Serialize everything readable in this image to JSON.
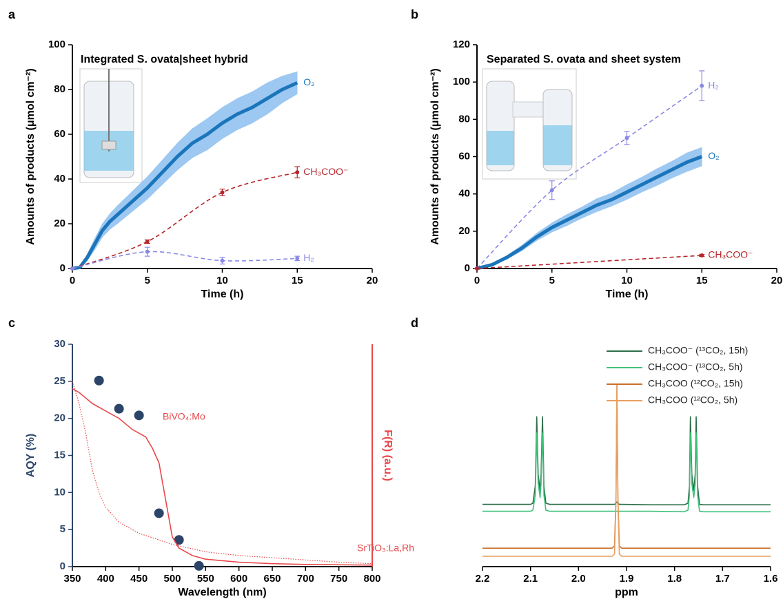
{
  "chart_data": [
    {
      "type": "line",
      "panel": "a",
      "title": "Integrated S. ovata|sheet hybrid",
      "xlabel": "Time (h)",
      "ylabel": "Amounts of products (μmol cm⁻²)",
      "xlim": [
        0,
        20
      ],
      "xticks": [
        0,
        5,
        10,
        15,
        20
      ],
      "ylim": [
        0,
        100
      ],
      "yticks": [
        0,
        20,
        40,
        60,
        80,
        100
      ],
      "series": [
        {
          "name": "O₂",
          "color": "#1b75bb",
          "band_color": "#9cc8f2",
          "style": "solid",
          "band": true,
          "x": [
            0,
            0.5,
            1,
            1.5,
            2,
            2.5,
            3,
            4,
            5,
            6,
            7,
            8,
            9,
            10,
            11,
            12,
            13,
            14,
            15
          ],
          "values": [
            0,
            0.5,
            5,
            11,
            17,
            21,
            24,
            30,
            36,
            43,
            50,
            56,
            60,
            65,
            69,
            72,
            76,
            80,
            83
          ],
          "errors": [
            0,
            0.5,
            1.5,
            2.5,
            3,
            3.5,
            4,
            4.5,
            5,
            5.5,
            6,
            6.5,
            7,
            7,
            7,
            7,
            7,
            6,
            5
          ]
        },
        {
          "name": "CH₃COO⁻",
          "color": "#b5262b",
          "style": "dashed",
          "markers": true,
          "x": [
            0,
            5,
            10,
            15
          ],
          "values": [
            0,
            12,
            34,
            43
          ],
          "errors": [
            0,
            0.8,
            1.5,
            2.5
          ]
        },
        {
          "name": "H₂",
          "color": "#8a88e6",
          "style": "dashed",
          "markers": true,
          "x": [
            0,
            5,
            10,
            15
          ],
          "values": [
            0,
            7.5,
            3.5,
            4.5
          ],
          "errors": [
            0,
            2,
            1.5,
            1
          ]
        }
      ]
    },
    {
      "type": "line",
      "panel": "b",
      "title": "Separated S. ovata and sheet system",
      "xlabel": "Time (h)",
      "ylabel": "Amounts of products (μmol cm⁻²)",
      "xlim": [
        0,
        20
      ],
      "xticks": [
        0,
        5,
        10,
        15,
        20
      ],
      "ylim": [
        0,
        120
      ],
      "yticks": [
        0,
        20,
        40,
        60,
        80,
        100,
        120
      ],
      "series": [
        {
          "name": "H₂",
          "color": "#8a88e6",
          "style": "dashed",
          "markers": true,
          "x": [
            0,
            5,
            10,
            15
          ],
          "values": [
            0,
            42,
            70,
            98
          ],
          "errors": [
            0,
            5,
            3.5,
            8
          ]
        },
        {
          "name": "O₂",
          "color": "#1b75bb",
          "band_color": "#9cc8f2",
          "style": "solid",
          "band": true,
          "x": [
            0,
            1,
            2,
            3,
            4,
            5,
            6,
            7,
            8,
            9,
            10,
            11,
            12,
            13,
            14,
            15
          ],
          "values": [
            0,
            2,
            6,
            11,
            17,
            22,
            26,
            30,
            34,
            37,
            41,
            45,
            49,
            53,
            57,
            60
          ],
          "errors": [
            0,
            0.5,
            1,
            1.5,
            2,
            2.5,
            3,
            3,
            3.5,
            3.5,
            4,
            4,
            4.5,
            4.5,
            5,
            5
          ]
        },
        {
          "name": "CH₃COO⁻",
          "color": "#b5262b",
          "style": "dashed",
          "markers": true,
          "x": [
            0,
            15
          ],
          "values": [
            0,
            7
          ],
          "errors": [
            0,
            0.5
          ]
        }
      ]
    },
    {
      "type": "scatter",
      "panel": "c",
      "xlabel": "Wavelength (nm)",
      "ylabel": "AQY (%)",
      "y2label": "F(R) (a.u.)",
      "y_color": "#2b4468",
      "y2_color": "#e8474a",
      "xlim": [
        350,
        800
      ],
      "xticks": [
        350,
        400,
        450,
        500,
        550,
        600,
        650,
        700,
        750,
        800
      ],
      "ylim": [
        0,
        30
      ],
      "yticks": [
        0,
        5,
        10,
        15,
        20,
        25,
        30
      ],
      "y2lim": [
        0,
        30
      ],
      "series": [
        {
          "color": "#2b4468",
          "style": "none",
          "markers": true,
          "x": [
            390,
            420,
            450,
            480,
            510,
            540
          ],
          "values": [
            25.1,
            21.3,
            20.4,
            7.2,
            3.6,
            0.1
          ]
        },
        {
          "name": "BiVO₄:Mo",
          "color": "#e8474a",
          "style": "solid",
          "axis": "y2",
          "x": [
            350,
            360,
            380,
            400,
            420,
            440,
            460,
            470,
            480,
            490,
            500,
            510,
            530,
            550,
            600,
            650,
            700,
            800
          ],
          "values": [
            24,
            23.5,
            22,
            21,
            20,
            18.5,
            17.5,
            16,
            14,
            9,
            4,
            2.5,
            1.5,
            1,
            0.6,
            0.4,
            0.3,
            0.2
          ]
        },
        {
          "name": "SrTiO₃:La,Rh",
          "color": "#e8474a",
          "style": "dotted",
          "axis": "y2",
          "x": [
            350,
            360,
            370,
            380,
            390,
            400,
            420,
            450,
            500,
            550,
            600,
            650,
            700,
            750,
            800
          ],
          "values": [
            25,
            22,
            18,
            13,
            10,
            8,
            6,
            4.5,
            3,
            2,
            1.5,
            1.2,
            0.9,
            0.6,
            0.4
          ]
        }
      ]
    },
    {
      "type": "line",
      "panel": "d",
      "xlabel": "ppm",
      "legend": "upper right",
      "xlim": [
        2.2,
        1.6
      ],
      "xticks": [
        2.2,
        2.1,
        {
          "value": 2,
          "label": "2.0"
        },
        1.9,
        1.8,
        1.7,
        1.6
      ],
      "ylim": [
        0,
        100
      ],
      "x": [
        2.2,
        2.1,
        2.095,
        2.09,
        2.087,
        2.084,
        2.08,
        2.078,
        2.075,
        2.072,
        2.068,
        2.06,
        2.0,
        1.93,
        1.925,
        1.922,
        1.92,
        1.918,
        1.915,
        1.91,
        1.85,
        1.78,
        1.772,
        1.769,
        1.767,
        1.764,
        1.76,
        1.757,
        1.755,
        1.752,
        1.748,
        1.74,
        1.6
      ],
      "series": [
        {
          "name": "CH₃COO⁻ (¹³CO₂, 15h)",
          "color": "#2e6e4a",
          "style": "solid",
          "values": [
            27,
            27,
            27.5,
            35,
            65,
            40,
            33,
            40,
            65,
            35,
            27.5,
            27,
            27,
            27,
            27,
            27.5,
            28,
            27.5,
            27,
            27,
            26.8,
            26.8,
            27.5,
            35,
            65,
            40,
            33,
            40,
            65,
            35,
            27,
            26.8,
            26.8
          ]
        },
        {
          "name": "CH₃COO⁻ (¹³CO₂, 5h)",
          "color": "#3fc07a",
          "style": "solid",
          "values": [
            24,
            24,
            24.5,
            31,
            58,
            36,
            30,
            36,
            58,
            31,
            24.5,
            24,
            24,
            24,
            24,
            24,
            24,
            24,
            24,
            24,
            24,
            23.8,
            24.5,
            31,
            58,
            36,
            30,
            36,
            58,
            31,
            24,
            23.8,
            23.8
          ]
        },
        {
          "name": "CH₃COO (¹²CO₂, 15h)",
          "color": "#c8702a",
          "style": "solid",
          "values": [
            8,
            8,
            8,
            8,
            8,
            8,
            8,
            8,
            8,
            8,
            8,
            8,
            8,
            8,
            9,
            30,
            79,
            30,
            9,
            8,
            8,
            8,
            8,
            8,
            8,
            8,
            8,
            8,
            8,
            8,
            8,
            8,
            8
          ]
        },
        {
          "name": "CH₃COO (¹²CO₂, 5h)",
          "color": "#e8a060",
          "style": "solid",
          "values": [
            4.5,
            4.5,
            4.5,
            4.5,
            4.5,
            4.5,
            4.5,
            4.5,
            4.5,
            4.5,
            4.5,
            4.5,
            4.5,
            4.5,
            5.5,
            28,
            79,
            28,
            5.5,
            4.5,
            4.5,
            4.5,
            4.5,
            4.5,
            4.5,
            4.5,
            4.5,
            4.5,
            4.5,
            4.5,
            4.5,
            4.5,
            4.5
          ]
        }
      ]
    }
  ]
}
